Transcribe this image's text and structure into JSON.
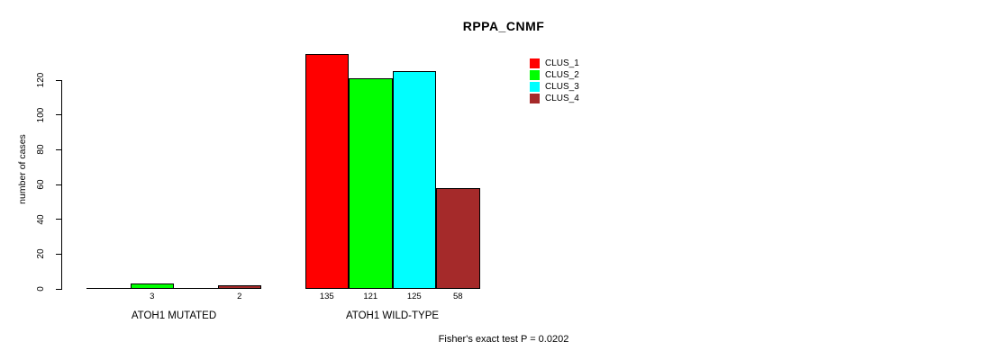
{
  "chart_data": {
    "type": "bar",
    "title": "RPPA_CNMF",
    "ylabel": "number of cases",
    "xlabel": "",
    "yticks": [
      0,
      20,
      40,
      60,
      80,
      100,
      120
    ],
    "ylim": [
      0,
      135
    ],
    "grid": false,
    "legend_position": "top-right",
    "categories": [
      "ATOH1 MUTATED",
      "ATOH1 WILD-TYPE"
    ],
    "series": [
      {
        "name": "CLUS_1",
        "color": "#FF0000",
        "values": [
          0,
          135
        ]
      },
      {
        "name": "CLUS_2",
        "color": "#00FF00",
        "values": [
          3,
          121
        ]
      },
      {
        "name": "CLUS_3",
        "color": "#00FFFF",
        "values": [
          0,
          125
        ]
      },
      {
        "name": "CLUS_4",
        "color": "#A52A2A",
        "values": [
          2,
          58
        ]
      }
    ],
    "bar_value_labels": [
      [
        "",
        "3",
        "",
        "2"
      ],
      [
        "135",
        "121",
        "125",
        "58"
      ]
    ],
    "footnote": "Fisher's exact test P = 0.0202"
  }
}
